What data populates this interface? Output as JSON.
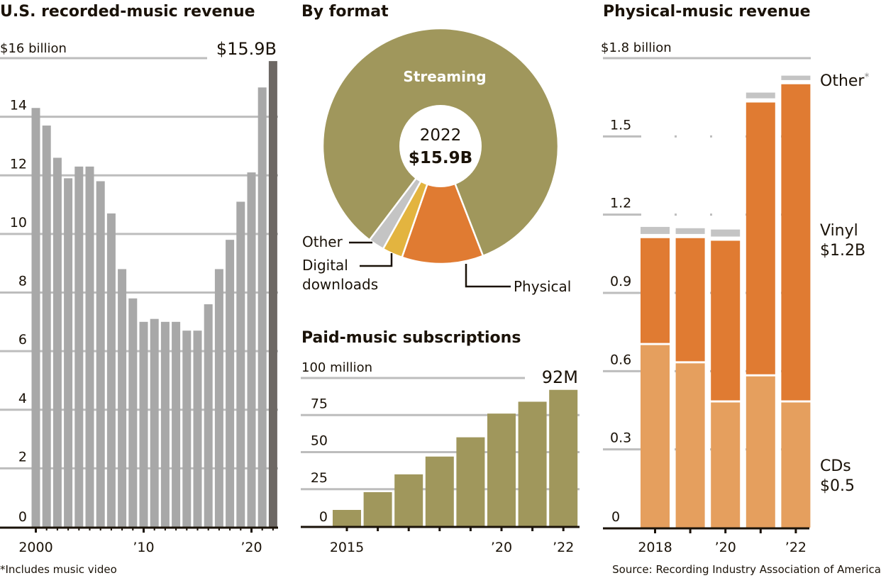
{
  "colors": {
    "revenue_bar": "#a8a8a8",
    "revenue_bar_highlight": "#6d6864",
    "streaming": "#a0975c",
    "physical": "#e07b32",
    "digital_downloads": "#e3b43f",
    "other": "#c4c4c4",
    "subscriptions": "#a0975c",
    "vinyl": "#e07b32",
    "cds": "#e59f5e",
    "physical_other": "#c4c4c4",
    "grid": "#bdbdbd",
    "axis": "#1a1208"
  },
  "footnote": "*Includes music video",
  "source": "Source: Recording Industry Association of America",
  "chart_data": [
    {
      "id": "revenue",
      "type": "bar",
      "title": "U.S. recorded-music revenue",
      "unit_label": "$16 billion",
      "annotation": "$15.9B",
      "x": [
        2000,
        2001,
        2002,
        2003,
        2004,
        2005,
        2006,
        2007,
        2008,
        2009,
        2010,
        2011,
        2012,
        2013,
        2014,
        2015,
        2016,
        2017,
        2018,
        2019,
        2020,
        2021,
        2022
      ],
      "values": [
        14.3,
        13.7,
        12.6,
        11.9,
        12.3,
        12.3,
        11.8,
        10.7,
        8.8,
        7.8,
        7.0,
        7.1,
        7.0,
        7.0,
        6.7,
        6.7,
        7.6,
        8.8,
        9.8,
        11.1,
        12.1,
        15.0,
        15.9
      ],
      "yticks": [
        "0",
        "2",
        "4",
        "6",
        "8",
        "10",
        "12",
        "14"
      ],
      "ytick_values": [
        0,
        2,
        4,
        6,
        8,
        10,
        12,
        14,
        16
      ],
      "xtick_labels": [
        {
          "year": 2000,
          "label": "2000"
        },
        {
          "year": 2010,
          "label": "’10"
        },
        {
          "year": 2020,
          "label": "’20"
        }
      ],
      "ylim": [
        0,
        16
      ],
      "grid": true
    },
    {
      "id": "format",
      "type": "pie",
      "title": "By format",
      "center_year": "2022",
      "center_total": "$15.9B",
      "slices": [
        {
          "label": "Streaming",
          "value": 83.8
        },
        {
          "label": "Physical",
          "value": 11.2
        },
        {
          "label": "Digital downloads",
          "value": 2.8
        },
        {
          "label": "Other",
          "value": 2.2
        }
      ],
      "labels": {
        "streaming": "Streaming",
        "physical": "Physical",
        "digital_line1": "Digital",
        "digital_line2": "downloads",
        "other": "Other"
      }
    },
    {
      "id": "subscriptions",
      "type": "bar",
      "title": "Paid-music subscriptions",
      "unit_label": "100 million",
      "annotation": "92M",
      "x": [
        2015,
        2016,
        2017,
        2018,
        2019,
        2020,
        2021,
        2022
      ],
      "values": [
        11,
        23,
        35,
        47,
        60,
        76,
        84,
        92
      ],
      "yticks": [
        "0",
        "25",
        "50",
        "75"
      ],
      "ytick_values": [
        0,
        25,
        50,
        75,
        100
      ],
      "xtick_labels": [
        {
          "year": 2015,
          "label": "2015"
        },
        {
          "year": 2020,
          "label": "’20"
        },
        {
          "year": 2022,
          "label": "’22"
        }
      ],
      "ylim": [
        0,
        100
      ],
      "grid": true
    },
    {
      "id": "physical",
      "type": "bar",
      "stacked": true,
      "title": "Physical-music revenue",
      "unit_label": "$1.8 billion",
      "x": [
        2018,
        2019,
        2020,
        2021,
        2022
      ],
      "series": [
        {
          "name": "CDs",
          "values": [
            0.7,
            0.63,
            0.48,
            0.58,
            0.48
          ]
        },
        {
          "name": "Vinyl",
          "values": [
            0.41,
            0.48,
            0.62,
            1.05,
            1.22
          ]
        },
        {
          "name": "Other*",
          "values": [
            0.035,
            0.03,
            0.035,
            0.03,
            0.025
          ]
        }
      ],
      "series_labels": {
        "other": "Other",
        "other_mark": "*",
        "vinyl": "Vinyl",
        "vinyl_value": "$1.2B",
        "cds": "CDs",
        "cds_value": "$0.5"
      },
      "yticks": [
        "0",
        "0.3",
        "0.6",
        "0.9",
        "1.2",
        "1.5"
      ],
      "ytick_values": [
        0,
        0.3,
        0.6,
        0.9,
        1.2,
        1.5,
        1.8
      ],
      "xtick_labels": [
        {
          "year": 2018,
          "label": "2018"
        },
        {
          "year": 2020,
          "label": "’20"
        },
        {
          "year": 2022,
          "label": "’22"
        }
      ],
      "ylim": [
        0,
        1.8
      ],
      "grid": true
    }
  ]
}
